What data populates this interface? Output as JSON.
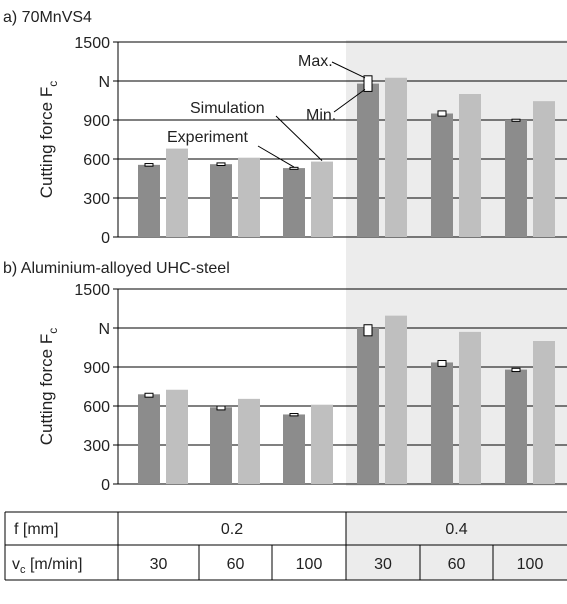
{
  "charts": [
    {
      "title": "a) 70MnVS4",
      "ylabel_main": "Cutting force F",
      "ylabel_sub": "c",
      "y_ticks": [
        "0",
        "300",
        "600",
        "900",
        "N",
        "1500"
      ],
      "annotations": {
        "max": "Max.",
        "min": "Min.",
        "simulation": "Simulation",
        "experiment": "Experiment"
      }
    },
    {
      "title": "b) Aluminium-alloyed UHC-steel",
      "ylabel_main": "Cutting force F",
      "ylabel_sub": "c",
      "y_ticks": [
        "0",
        "300",
        "600",
        "900",
        "N",
        "1500"
      ]
    }
  ],
  "chart_data": [
    {
      "type": "bar",
      "title": "a) 70MnVS4",
      "ylabel": "Cutting force Fc",
      "yunit": "N",
      "ylim": [
        0,
        1500
      ],
      "y_tick_values": [
        0,
        300,
        600,
        900,
        1200,
        1500
      ],
      "grid": true,
      "categories": [
        "f 0.2 / vc 30",
        "f 0.2 / vc 60",
        "f 0.2 / vc 100",
        "f 0.4 / vc 30",
        "f 0.4 / vc 60",
        "f 0.4 / vc 100"
      ],
      "series": [
        {
          "name": "Experiment",
          "color": "#8c8c8c",
          "values": [
            555,
            560,
            530,
            1180,
            950,
            900
          ],
          "min": [
            545,
            550,
            524,
            1120,
            930,
            890
          ],
          "max": [
            565,
            570,
            536,
            1240,
            970,
            906
          ]
        },
        {
          "name": "Simulation",
          "color": "#bfbfbf",
          "values": [
            680,
            610,
            580,
            1225,
            1100,
            1045
          ]
        }
      ]
    },
    {
      "type": "bar",
      "title": "b) Aluminium-alloyed UHC-steel",
      "ylabel": "Cutting force Fc",
      "yunit": "N",
      "ylim": [
        0,
        1500
      ],
      "y_tick_values": [
        0,
        300,
        600,
        900,
        1200,
        1500
      ],
      "grid": true,
      "categories": [
        "f 0.2 / vc 30",
        "f 0.2 / vc 60",
        "f 0.2 / vc 100",
        "f 0.4 / vc 30",
        "f 0.4 / vc 60",
        "f 0.4 / vc 100"
      ],
      "series": [
        {
          "name": "Experiment",
          "color": "#8c8c8c",
          "values": [
            690,
            590,
            535,
            1200,
            935,
            880
          ],
          "min": [
            668,
            570,
            524,
            1140,
            905,
            865
          ],
          "max": [
            698,
            600,
            542,
            1225,
            950,
            890
          ]
        },
        {
          "name": "Simulation",
          "color": "#bfbfbf",
          "values": [
            725,
            655,
            610,
            1295,
            1170,
            1100
          ]
        }
      ]
    }
  ],
  "table": {
    "f_label": "f  [mm]",
    "vc_label_main": "v",
    "vc_label_sub": "c",
    "vc_label_unit": " [m/min]",
    "f_values": [
      "0.2",
      "0.4"
    ],
    "vc_values": [
      "30",
      "60",
      "100",
      "30",
      "60",
      "100"
    ]
  },
  "colors": {
    "experiment": "#8c8c8c",
    "simulation": "#bfbfbf",
    "shade": "#ececec",
    "grid": "#000000"
  }
}
